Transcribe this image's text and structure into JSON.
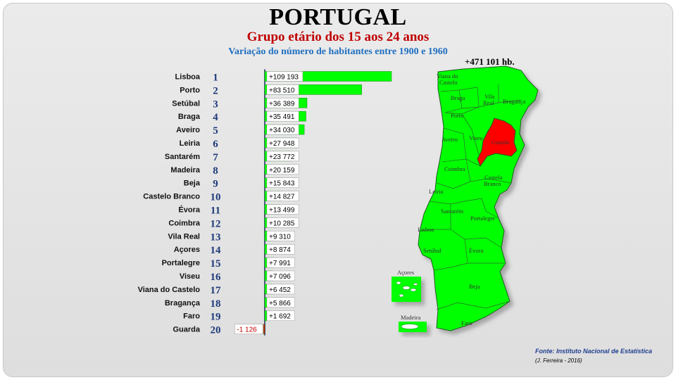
{
  "header": {
    "title": "PORTUGAL",
    "subtitle": "Grupo etário dos 15 aos 24 anos",
    "description": "Variação do número de habitantes entre 1900 e 1960"
  },
  "total_label": "+471 101 hb.",
  "source": "Fonte: Instituto Nacional de Estatística",
  "author": "(J. Ferreira - 2016)",
  "colors": {
    "positive": "#00ff00",
    "negative": "#ff0000",
    "highlight": "#ff0000",
    "rank": "#1f3a7a"
  },
  "chart_data": {
    "type": "bar",
    "orientation": "horizontal",
    "categories": [
      "Lisboa",
      "Porto",
      "Setúbal",
      "Braga",
      "Aveiro",
      "Leiria",
      "Santarém",
      "Madeira",
      "Beja",
      "Castelo Branco",
      "Évora",
      "Coimbra",
      "Vila Real",
      "Açores",
      "Portalegre",
      "Viseu",
      "Viana do Castelo",
      "Bragança",
      "Faro",
      "Guarda"
    ],
    "ranks": [
      "1",
      "2",
      "3",
      "4",
      "5",
      "6",
      "7",
      "8",
      "9",
      "10",
      "11",
      "12",
      "13",
      "14",
      "15",
      "16",
      "17",
      "18",
      "19",
      "20"
    ],
    "values": [
      109193,
      83510,
      36389,
      35491,
      34030,
      27948,
      23772,
      20159,
      15843,
      14827,
      13499,
      10285,
      9310,
      8874,
      7991,
      7096,
      6452,
      5866,
      1692,
      -1126
    ],
    "value_labels": [
      "+109 193",
      "+83 510",
      "+36 389",
      "+35 491",
      "+34 030",
      "+27 948",
      "+23 772",
      "+20 159",
      "+15 843",
      "+14 827",
      "+13 499",
      "+10 285",
      "+9 310",
      "+8 874",
      "+7 991",
      "+7 096",
      "+6 452",
      "+5 866",
      "+1 692",
      "-1 126"
    ],
    "title": "Grupo etário dos 15 aos 24 anos",
    "xlabel": "",
    "ylabel": "",
    "grid": false
  },
  "map": {
    "districts": [
      {
        "name": "Viana do Castelo",
        "label_lines": [
          "Viana do",
          "Castelo"
        ],
        "highlight": false
      },
      {
        "name": "Braga",
        "label_lines": [
          "Braga"
        ],
        "highlight": false
      },
      {
        "name": "Vila Real",
        "label_lines": [
          "Vila",
          "Real"
        ],
        "highlight": false
      },
      {
        "name": "Bragança",
        "label_lines": [
          "Bragança"
        ],
        "highlight": false
      },
      {
        "name": "Porto",
        "label_lines": [
          "Porto"
        ],
        "highlight": false
      },
      {
        "name": "Aveiro",
        "label_lines": [
          "Aveiro"
        ],
        "highlight": false
      },
      {
        "name": "Viseu",
        "label_lines": [
          "Viseu"
        ],
        "highlight": false
      },
      {
        "name": "Guarda",
        "label_lines": [
          "Guarda"
        ],
        "highlight": true
      },
      {
        "name": "Coimbra",
        "label_lines": [
          "Coimbra"
        ],
        "highlight": false
      },
      {
        "name": "Castelo Branco",
        "label_lines": [
          "Castelo",
          "Branco"
        ],
        "highlight": false
      },
      {
        "name": "Leiria",
        "label_lines": [
          "Leiria"
        ],
        "highlight": false
      },
      {
        "name": "Santarém",
        "label_lines": [
          "Santarém"
        ],
        "highlight": false
      },
      {
        "name": "Portalegre",
        "label_lines": [
          "Portalegre"
        ],
        "highlight": false
      },
      {
        "name": "Lisboa",
        "label_lines": [
          "Lisboa"
        ],
        "highlight": false
      },
      {
        "name": "Setúbal",
        "label_lines": [
          "Setúbal"
        ],
        "highlight": false
      },
      {
        "name": "Évora",
        "label_lines": [
          "Évora"
        ],
        "highlight": false
      },
      {
        "name": "Beja",
        "label_lines": [
          "Beja"
        ],
        "highlight": false
      },
      {
        "name": "Faro",
        "label_lines": [
          "Faro"
        ],
        "highlight": false
      }
    ],
    "islands": [
      {
        "name": "Açores"
      },
      {
        "name": "Madeira"
      }
    ]
  }
}
